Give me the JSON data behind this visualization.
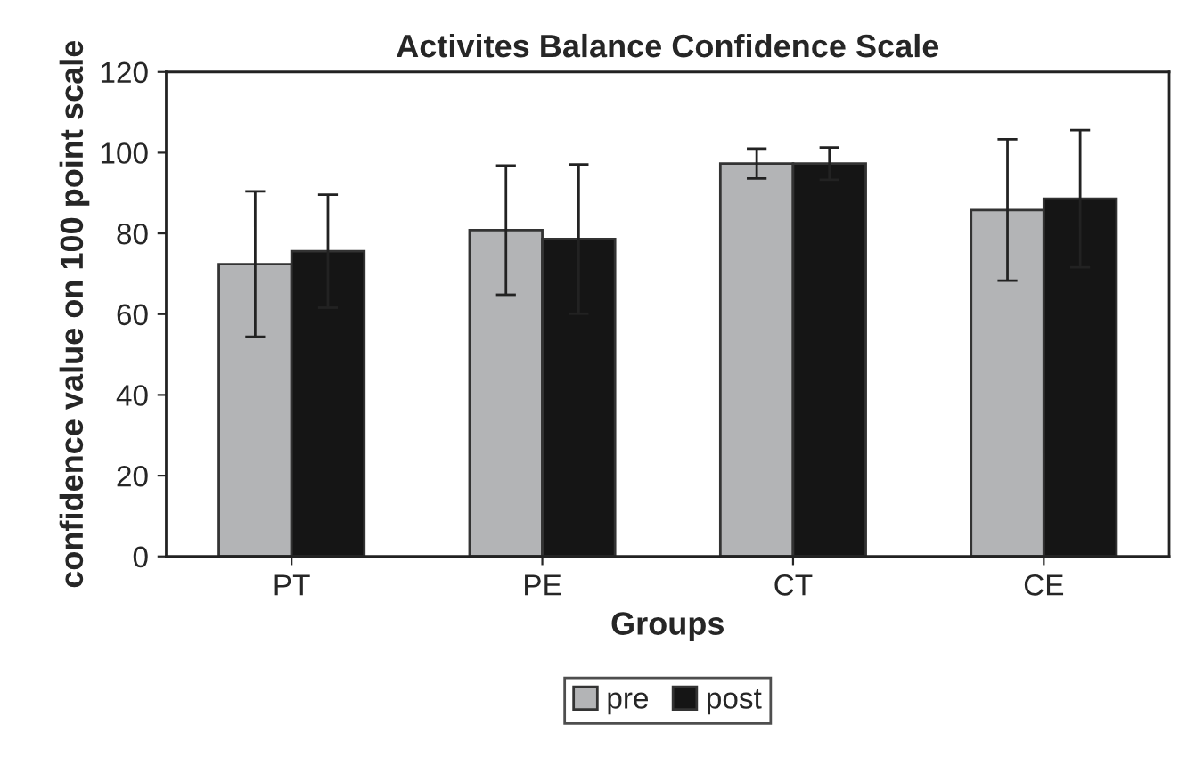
{
  "chart_data": {
    "type": "bar",
    "title": "Activites Balance Confidence Scale",
    "xlabel": "Groups",
    "ylabel": "confidence value on 100 point scale",
    "categories": [
      "PT",
      "PE",
      "CT",
      "CE"
    ],
    "series": [
      {
        "name": "pre",
        "color": "#b3b4b6",
        "values": [
          72.4,
          80.8,
          97.3,
          85.8
        ],
        "errors": [
          18,
          16,
          3.7,
          17.5
        ]
      },
      {
        "name": "post",
        "color": "#151515",
        "values": [
          75.6,
          78.6,
          97.3,
          88.6
        ],
        "errors": [
          14,
          18.5,
          4,
          17
        ]
      }
    ],
    "ylim": [
      0,
      120
    ],
    "yticks": [
      0,
      20,
      40,
      60,
      80,
      100,
      120
    ],
    "grid": false,
    "legend": "bottom"
  }
}
